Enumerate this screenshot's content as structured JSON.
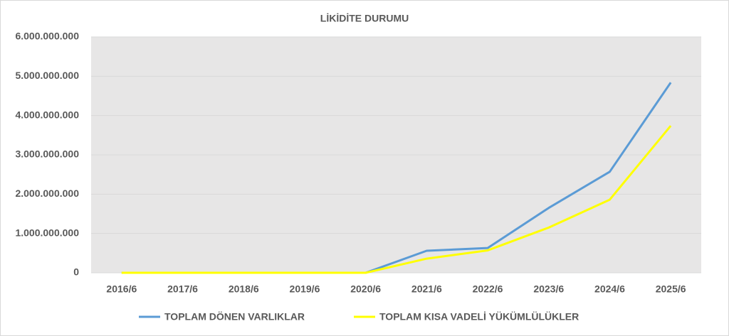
{
  "chart_data": {
    "type": "line",
    "title": "LİKİDİTE DURUMU",
    "categories": [
      "2016/6",
      "2017/6",
      "2018/6",
      "2019/6",
      "2020/6",
      "2021/6",
      "2022/6",
      "2023/6",
      "2024/6",
      "2025/6"
    ],
    "series": [
      {
        "name": "TOPLAM DÖNEN VARLIKLAR",
        "color": "#5b9bd5",
        "values": [
          0,
          0,
          0,
          0,
          0,
          560000000,
          630000000,
          1650000000,
          2570000000,
          4840000000
        ]
      },
      {
        "name": "TOPLAM KISA VADELİ YÜKÜMLÜLÜKLER",
        "color": "#ffff00",
        "values": [
          0,
          0,
          0,
          0,
          0,
          360000000,
          570000000,
          1150000000,
          1860000000,
          3740000000
        ]
      }
    ],
    "ylim": [
      0,
      6000000000
    ],
    "yticks": [
      0,
      {
        "value": 1000000000,
        "label": "1.000.000.000"
      },
      {
        "value": 2000000000,
        "label": "2.000.000.000"
      },
      {
        "value": 3000000000,
        "label": "3.000.000.000"
      },
      {
        "value": 4000000000,
        "label": "4.000.000.000"
      },
      {
        "value": 5000000000,
        "label": "5.000.000.000"
      },
      {
        "value": 6000000000,
        "label": "6.000.000.000"
      }
    ],
    "grid": true,
    "legend": "bottom"
  }
}
